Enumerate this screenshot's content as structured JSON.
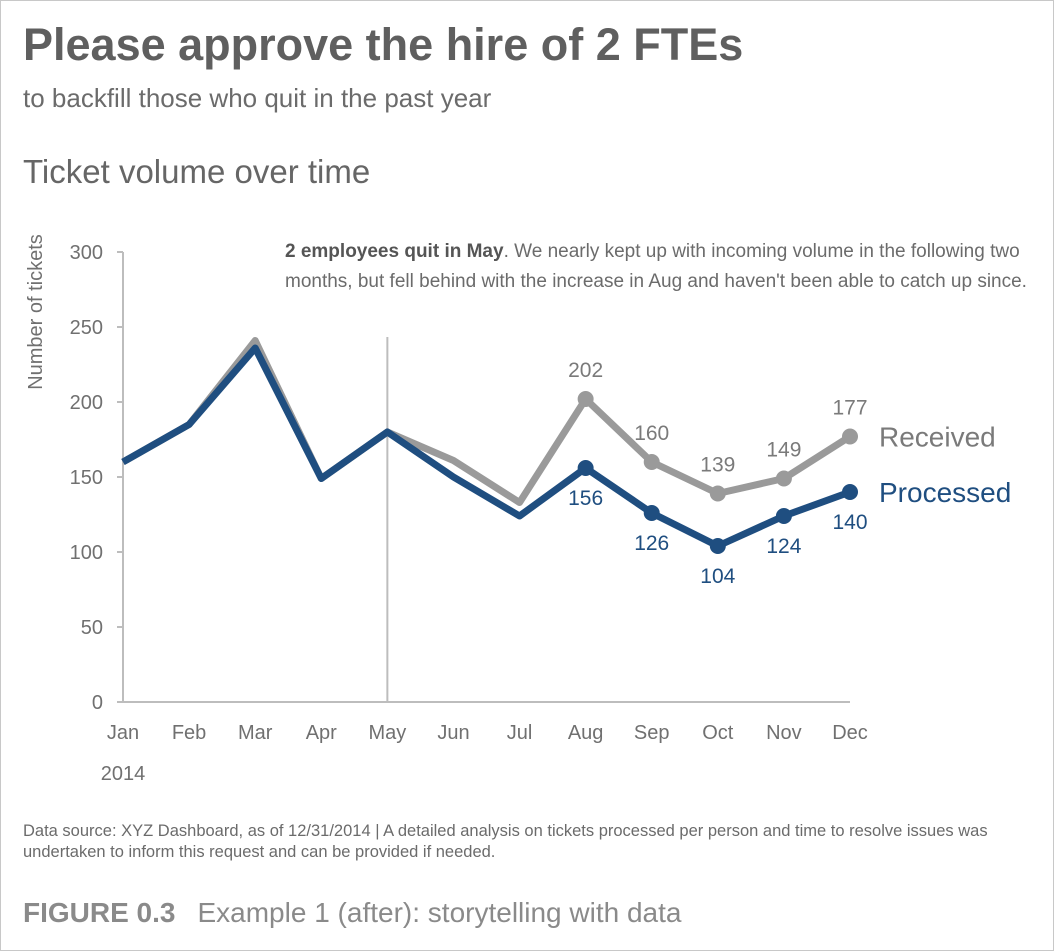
{
  "header": {
    "title": "Please approve the hire of 2 FTEs",
    "subtitle": "to backfill those who quit in the past year"
  },
  "annotation": {
    "bold": "2 employees quit in May",
    "text": ". We nearly kept up with incoming volume in the following two months, but fell behind with the increase in Aug and haven't been able to catch up since."
  },
  "footer": {
    "source": "Data source: XYZ Dashboard, as of 12/31/2014  |  A detailed analysis on tickets processed per person and time to resolve issues was undertaken to inform this request and can be provided if needed.",
    "figure_label": "FIGURE 0.3",
    "figure_caption": "Example 1 (after): storytelling with data"
  },
  "chart_data": {
    "type": "line",
    "title": "Ticket volume over time",
    "xlabel": "2014",
    "ylabel": "Number of tickets",
    "ylim": [
      0,
      300
    ],
    "yticks": [
      0,
      50,
      100,
      150,
      200,
      250,
      300
    ],
    "categories": [
      "Jan",
      "Feb",
      "Mar",
      "Apr",
      "May",
      "Jun",
      "Jul",
      "Aug",
      "Sep",
      "Oct",
      "Nov",
      "Dec"
    ],
    "reference_line": "May",
    "series": [
      {
        "name": "Received",
        "color": "#9a9a9a",
        "values": [
          160,
          185,
          241,
          149,
          180,
          161,
          133,
          202,
          160,
          139,
          149,
          177
        ],
        "labeled_from": 7
      },
      {
        "name": "Processed",
        "color": "#1f4e80",
        "values": [
          160,
          185,
          236,
          149,
          180,
          150,
          124,
          156,
          126,
          104,
          124,
          140
        ],
        "labeled_from": 7
      }
    ]
  }
}
